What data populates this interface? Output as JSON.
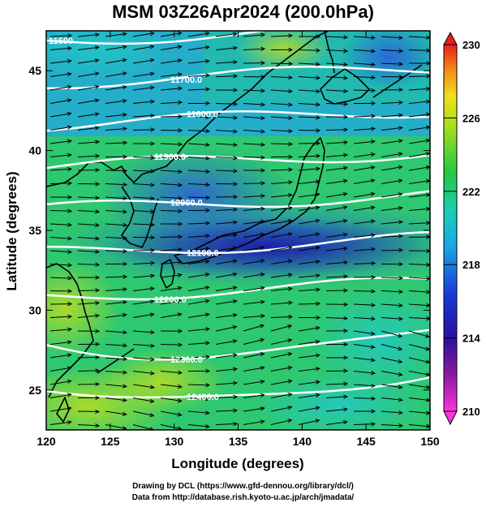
{
  "title": "MSM 03Z26Apr2024 (200.0hPa)",
  "axes": {
    "xlabel": "Longitude (degrees)",
    "ylabel": "Latitude  (degrees)",
    "xrange": [
      120,
      150
    ],
    "yrange": [
      22.5,
      47.5
    ],
    "xticks": [
      "120",
      "125",
      "130",
      "135",
      "140",
      "145",
      "150"
    ],
    "yticks": [
      "25",
      "30",
      "35",
      "40",
      "45"
    ]
  },
  "colorbar": {
    "min": 210,
    "max": 230,
    "tick_labels": [
      "230",
      "226",
      "222",
      "218",
      "214",
      "210"
    ]
  },
  "contours": {
    "color": "#ffffff",
    "labels": [
      "11600",
      "11700.0",
      "11800.0",
      "11900.0",
      "12000.0",
      "12100.0",
      "12200.0",
      "12300.0",
      "12400.0"
    ]
  },
  "credits": {
    "line1": "Drawing by DCL (https://www.gfd-dennou.org/library/dcl/)",
    "line2": "Data from http://database.rish.kyoto-u.ac.jp/arch/jmadata/"
  }
}
